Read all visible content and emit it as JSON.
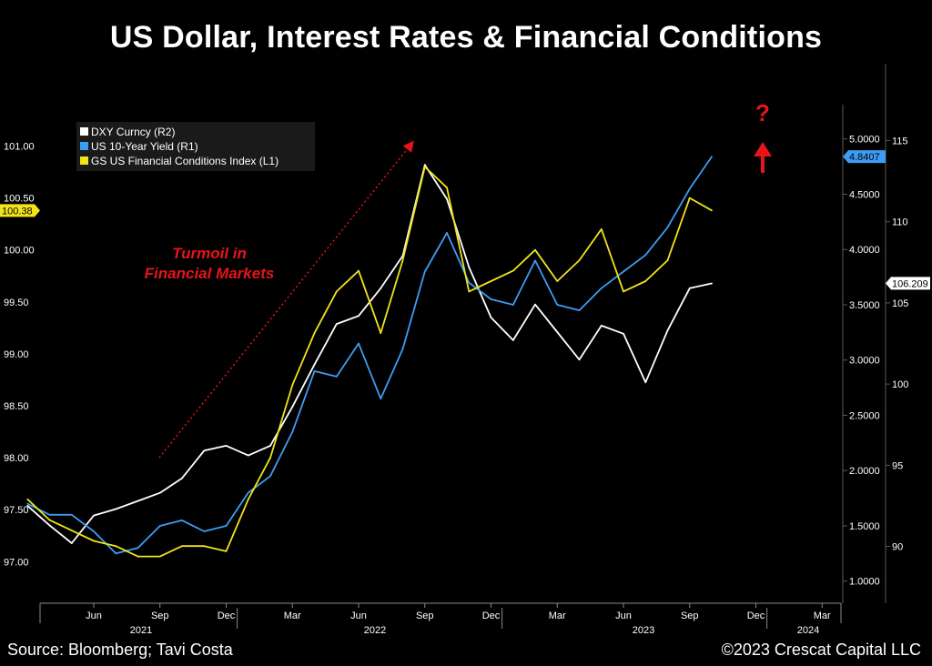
{
  "title": "US Dollar, Interest Rates & Financial Conditions",
  "footer": {
    "source": "Source: Bloomberg; Tavi Costa",
    "copyright": "©2023 Crescat Capital LLC"
  },
  "chart_data": {
    "type": "line",
    "x_tick_labels": [
      "Jun",
      "Sep",
      "Dec",
      "Mar",
      "Jun",
      "Sep",
      "Dec",
      "Mar",
      "Jun",
      "Sep",
      "Dec",
      "Mar"
    ],
    "year_labels": [
      "2021",
      "2022",
      "2023",
      "2024"
    ],
    "left_axis": {
      "ticks": [
        "97.00",
        "97.50",
        "98.00",
        "98.50",
        "99.00",
        "99.50",
        "100.00",
        "100.50",
        "101.00"
      ],
      "tick_values": [
        97.0,
        97.5,
        98.0,
        98.5,
        99.0,
        99.5,
        100.0,
        100.5,
        101.0
      ],
      "range": [
        96.6,
        101.6
      ],
      "last_value_label": "100.38"
    },
    "r1_axis": {
      "ticks": [
        "1.0000",
        "1.5000",
        "2.0000",
        "2.5000",
        "3.0000",
        "3.5000",
        "4.0000",
        "4.5000",
        "5.0000"
      ],
      "tick_values": [
        1.0,
        1.5,
        2.0,
        2.5,
        3.0,
        3.5,
        4.0,
        4.5,
        5.0
      ],
      "range": [
        0.8,
        5.5
      ],
      "last_value_label": "4.8407"
    },
    "r2_axis": {
      "ticks": [
        "90",
        "95",
        "100",
        "105",
        "110",
        "115"
      ],
      "tick_values": [
        90,
        95,
        100,
        105,
        110,
        115
      ],
      "range": [
        86.5,
        118.5
      ],
      "last_value_label": "106.209"
    },
    "legend": {
      "position": "top-left",
      "entries": [
        "DXY Curncy (R2)",
        "US 10-Year Yield (R1)",
        "GS US Financial Conditions Index (L1)"
      ]
    },
    "series": [
      {
        "name": "DXY Curncy (R2)",
        "axis": "R2",
        "color": "#ffffff",
        "x": [
          "2021-03",
          "2021-04",
          "2021-05",
          "2021-06",
          "2021-07",
          "2021-08",
          "2021-09",
          "2021-10",
          "2021-11",
          "2021-12",
          "2022-01",
          "2022-02",
          "2022-03",
          "2022-04",
          "2022-05",
          "2022-06",
          "2022-07",
          "2022-08",
          "2022-09",
          "2022-10",
          "2022-11",
          "2022-12",
          "2023-01",
          "2023-02",
          "2023-03",
          "2023-04",
          "2023-05",
          "2023-06",
          "2023-07",
          "2023-08",
          "2023-09",
          "2023-10"
        ],
        "values": [
          92.5,
          91.3,
          90.2,
          91.9,
          92.3,
          92.8,
          93.3,
          94.2,
          95.9,
          96.2,
          95.6,
          96.2,
          98.6,
          101.2,
          103.7,
          104.2,
          105.9,
          107.9,
          113.5,
          111.4,
          107.2,
          104.1,
          102.7,
          104.9,
          103.2,
          101.5,
          103.6,
          103.1,
          100.1,
          103.3,
          105.9,
          106.2
        ]
      },
      {
        "name": "US 10-Year Yield (R1)",
        "axis": "R1",
        "color": "#3d9df3",
        "x": [
          "2021-03",
          "2021-04",
          "2021-05",
          "2021-06",
          "2021-07",
          "2021-08",
          "2021-09",
          "2021-10",
          "2021-11",
          "2021-12",
          "2022-01",
          "2022-02",
          "2022-03",
          "2022-04",
          "2022-05",
          "2022-06",
          "2022-07",
          "2022-08",
          "2022-09",
          "2022-10",
          "2022-11",
          "2022-12",
          "2023-01",
          "2023-02",
          "2023-03",
          "2023-04",
          "2023-05",
          "2023-06",
          "2023-07",
          "2023-08",
          "2023-09",
          "2023-10"
        ],
        "values": [
          1.7,
          1.6,
          1.6,
          1.45,
          1.25,
          1.3,
          1.5,
          1.55,
          1.45,
          1.5,
          1.8,
          1.95,
          2.35,
          2.9,
          2.85,
          3.15,
          2.65,
          3.1,
          3.8,
          4.15,
          3.7,
          3.55,
          3.5,
          3.9,
          3.5,
          3.45,
          3.65,
          3.8,
          3.95,
          4.2,
          4.55,
          4.84
        ]
      },
      {
        "name": "GS US Financial Conditions Index (L1)",
        "axis": "L1",
        "color": "#f2e41a",
        "x": [
          "2021-03",
          "2021-04",
          "2021-05",
          "2021-06",
          "2021-07",
          "2021-08",
          "2021-09",
          "2021-10",
          "2021-11",
          "2021-12",
          "2022-01",
          "2022-02",
          "2022-03",
          "2022-04",
          "2022-05",
          "2022-06",
          "2022-07",
          "2022-08",
          "2022-09",
          "2022-10",
          "2022-11",
          "2022-12",
          "2023-01",
          "2023-02",
          "2023-03",
          "2023-04",
          "2023-05",
          "2023-06",
          "2023-07",
          "2023-08",
          "2023-09",
          "2023-10"
        ],
        "values": [
          97.6,
          97.4,
          97.3,
          97.2,
          97.15,
          97.05,
          97.05,
          97.15,
          97.15,
          97.1,
          97.6,
          98.0,
          98.7,
          99.2,
          99.6,
          99.8,
          99.2,
          99.9,
          100.8,
          100.6,
          99.6,
          99.7,
          99.8,
          100.0,
          99.7,
          99.9,
          100.2,
          99.6,
          99.7,
          99.9,
          100.5,
          100.38
        ]
      }
    ],
    "annotations": [
      {
        "text": "Turmoil in",
        "color": "#e8141a"
      },
      {
        "text": "Financial Markets",
        "color": "#e8141a"
      },
      {
        "text": "?",
        "color": "#e8141a"
      }
    ]
  }
}
